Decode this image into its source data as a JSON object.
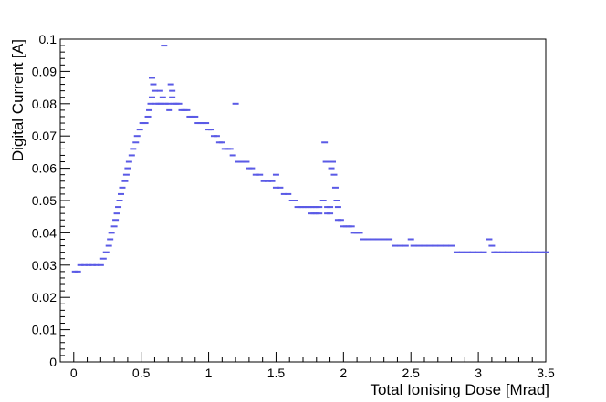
{
  "chart_data": {
    "type": "scatter",
    "xlabel": "Total Ionising Dose [Mrad]",
    "ylabel": "Digital Current [A]",
    "xlim": [
      -0.1,
      3.5
    ],
    "ylim": [
      0,
      0.1
    ],
    "x_ticks": [
      {
        "value": 0,
        "label": "0"
      },
      {
        "value": 0.5,
        "label": "0.5"
      },
      {
        "value": 1,
        "label": "1"
      },
      {
        "value": 1.5,
        "label": "1.5"
      },
      {
        "value": 2,
        "label": "2"
      },
      {
        "value": 2.5,
        "label": "2.5"
      },
      {
        "value": 3,
        "label": "3"
      },
      {
        "value": 3.5,
        "label": "3.5"
      }
    ],
    "y_ticks": [
      {
        "value": 0,
        "label": "0"
      },
      {
        "value": 0.01,
        "label": "0.01"
      },
      {
        "value": 0.02,
        "label": "0.02"
      },
      {
        "value": 0.03,
        "label": "0.03"
      },
      {
        "value": 0.04,
        "label": "0.04"
      },
      {
        "value": 0.05,
        "label": "0.05"
      },
      {
        "value": 0.06,
        "label": "0.06"
      },
      {
        "value": 0.07,
        "label": "0.07"
      },
      {
        "value": 0.08,
        "label": "0.08"
      },
      {
        "value": 0.09,
        "label": "0.09"
      },
      {
        "value": 0.1,
        "label": "0.1"
      }
    ],
    "marker_color": "#5a5ae6",
    "grid": false,
    "series": [
      {
        "points": [
          [
            0.01,
            0.028
          ],
          [
            0.03,
            0.028
          ],
          [
            0.05,
            0.03
          ],
          [
            0.08,
            0.03
          ],
          [
            0.11,
            0.03
          ],
          [
            0.14,
            0.03
          ],
          [
            0.17,
            0.03
          ],
          [
            0.2,
            0.03
          ],
          [
            0.22,
            0.032
          ],
          [
            0.24,
            0.034
          ],
          [
            0.26,
            0.036
          ],
          [
            0.27,
            0.038
          ],
          [
            0.28,
            0.04
          ],
          [
            0.3,
            0.042
          ],
          [
            0.31,
            0.044
          ],
          [
            0.32,
            0.046
          ],
          [
            0.33,
            0.048
          ],
          [
            0.34,
            0.05
          ],
          [
            0.35,
            0.052
          ],
          [
            0.36,
            0.054
          ],
          [
            0.38,
            0.056
          ],
          [
            0.39,
            0.058
          ],
          [
            0.4,
            0.06
          ],
          [
            0.41,
            0.062
          ],
          [
            0.43,
            0.064
          ],
          [
            0.44,
            0.066
          ],
          [
            0.46,
            0.068
          ],
          [
            0.47,
            0.07
          ],
          [
            0.49,
            0.072
          ],
          [
            0.51,
            0.074
          ],
          [
            0.53,
            0.074
          ],
          [
            0.55,
            0.076
          ],
          [
            0.56,
            0.078
          ],
          [
            0.57,
            0.08
          ],
          [
            0.58,
            0.082
          ],
          [
            0.58,
            0.088
          ],
          [
            0.59,
            0.086
          ],
          [
            0.6,
            0.084
          ],
          [
            0.61,
            0.08
          ],
          [
            0.63,
            0.08
          ],
          [
            0.65,
            0.08
          ],
          [
            0.64,
            0.084
          ],
          [
            0.66,
            0.082
          ],
          [
            0.67,
            0.098
          ],
          [
            0.68,
            0.08
          ],
          [
            0.7,
            0.08
          ],
          [
            0.71,
            0.078
          ],
          [
            0.72,
            0.086
          ],
          [
            0.73,
            0.084
          ],
          [
            0.73,
            0.082
          ],
          [
            0.74,
            0.08
          ],
          [
            0.76,
            0.08
          ],
          [
            0.78,
            0.08
          ],
          [
            0.8,
            0.078
          ],
          [
            0.82,
            0.078
          ],
          [
            0.84,
            0.078
          ],
          [
            0.86,
            0.076
          ],
          [
            0.88,
            0.076
          ],
          [
            0.9,
            0.076
          ],
          [
            0.92,
            0.074
          ],
          [
            0.94,
            0.074
          ],
          [
            0.96,
            0.074
          ],
          [
            0.98,
            0.074
          ],
          [
            1.0,
            0.072
          ],
          [
            1.02,
            0.072
          ],
          [
            1.04,
            0.07
          ],
          [
            1.06,
            0.07
          ],
          [
            1.08,
            0.068
          ],
          [
            1.1,
            0.068
          ],
          [
            1.12,
            0.066
          ],
          [
            1.14,
            0.066
          ],
          [
            1.16,
            0.066
          ],
          [
            1.18,
            0.064
          ],
          [
            1.2,
            0.08
          ],
          [
            1.22,
            0.062
          ],
          [
            1.24,
            0.062
          ],
          [
            1.26,
            0.062
          ],
          [
            1.28,
            0.062
          ],
          [
            1.3,
            0.06
          ],
          [
            1.32,
            0.06
          ],
          [
            1.35,
            0.058
          ],
          [
            1.38,
            0.058
          ],
          [
            1.41,
            0.056
          ],
          [
            1.44,
            0.056
          ],
          [
            1.47,
            0.056
          ],
          [
            1.5,
            0.058
          ],
          [
            1.5,
            0.054
          ],
          [
            1.53,
            0.054
          ],
          [
            1.56,
            0.052
          ],
          [
            1.59,
            0.052
          ],
          [
            1.62,
            0.05
          ],
          [
            1.64,
            0.05
          ],
          [
            1.66,
            0.048
          ],
          [
            1.68,
            0.048
          ],
          [
            1.7,
            0.048
          ],
          [
            1.72,
            0.048
          ],
          [
            1.74,
            0.048
          ],
          [
            1.76,
            0.048
          ],
          [
            1.78,
            0.048
          ],
          [
            1.8,
            0.048
          ],
          [
            1.82,
            0.048
          ],
          [
            1.76,
            0.046
          ],
          [
            1.78,
            0.046
          ],
          [
            1.8,
            0.046
          ],
          [
            1.82,
            0.046
          ],
          [
            1.85,
            0.05
          ],
          [
            1.86,
            0.068
          ],
          [
            1.87,
            0.062
          ],
          [
            1.88,
            0.048
          ],
          [
            1.9,
            0.048
          ],
          [
            1.91,
            0.06
          ],
          [
            1.92,
            0.062
          ],
          [
            1.93,
            0.058
          ],
          [
            1.94,
            0.054
          ],
          [
            1.95,
            0.05
          ],
          [
            1.96,
            0.048
          ],
          [
            1.88,
            0.046
          ],
          [
            1.9,
            0.046
          ],
          [
            1.96,
            0.044
          ],
          [
            1.98,
            0.044
          ],
          [
            2.0,
            0.042
          ],
          [
            2.02,
            0.042
          ],
          [
            2.04,
            0.042
          ],
          [
            2.06,
            0.042
          ],
          [
            2.08,
            0.04
          ],
          [
            2.1,
            0.04
          ],
          [
            2.12,
            0.04
          ],
          [
            2.15,
            0.038
          ],
          [
            2.18,
            0.038
          ],
          [
            2.22,
            0.038
          ],
          [
            2.26,
            0.038
          ],
          [
            2.3,
            0.038
          ],
          [
            2.34,
            0.038
          ],
          [
            2.38,
            0.036
          ],
          [
            2.42,
            0.036
          ],
          [
            2.46,
            0.036
          ],
          [
            2.5,
            0.038
          ],
          [
            2.52,
            0.036
          ],
          [
            2.56,
            0.036
          ],
          [
            2.6,
            0.036
          ],
          [
            2.64,
            0.036
          ],
          [
            2.68,
            0.036
          ],
          [
            2.72,
            0.036
          ],
          [
            2.76,
            0.036
          ],
          [
            2.8,
            0.036
          ],
          [
            2.84,
            0.034
          ],
          [
            2.88,
            0.034
          ],
          [
            2.92,
            0.034
          ],
          [
            2.96,
            0.034
          ],
          [
            3.0,
            0.034
          ],
          [
            3.04,
            0.034
          ],
          [
            3.08,
            0.038
          ],
          [
            3.1,
            0.036
          ],
          [
            3.12,
            0.034
          ],
          [
            3.14,
            0.034
          ],
          [
            3.18,
            0.034
          ],
          [
            3.22,
            0.034
          ],
          [
            3.26,
            0.034
          ],
          [
            3.3,
            0.034
          ],
          [
            3.34,
            0.034
          ],
          [
            3.38,
            0.034
          ],
          [
            3.42,
            0.034
          ],
          [
            3.46,
            0.034
          ],
          [
            3.5,
            0.034
          ]
        ]
      }
    ]
  }
}
